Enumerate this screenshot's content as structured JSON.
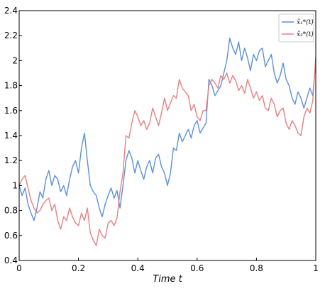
{
  "chart_data": {
    "type": "line",
    "title": "",
    "xlabel": "Time t",
    "ylabel": "",
    "xlim": [
      0,
      1
    ],
    "ylim": [
      0.4,
      2.4
    ],
    "xticks": [
      0,
      0.2,
      0.4,
      0.6,
      0.8,
      1
    ],
    "xtick_labels": [
      "0",
      "0.2",
      "0.4",
      "0.6",
      "0.8",
      "1"
    ],
    "yticks": [
      0.4,
      0.6,
      0.8,
      1,
      1.2,
      1.4,
      1.6,
      1.8,
      2,
      2.2,
      2.4
    ],
    "ytick_labels": [
      "0.4",
      "0.6",
      "0.8",
      "1",
      "1.2",
      "1.4",
      "1.6",
      "1.8",
      "2",
      "2.2",
      "2.4"
    ],
    "grid": false,
    "legend_position": "top-right",
    "series": [
      {
        "name": "x̂₁*(t)",
        "color": "#5b8fde",
        "x": [
          0,
          0.01,
          0.02,
          0.03,
          0.04,
          0.05,
          0.06,
          0.07,
          0.08,
          0.09,
          0.1,
          0.11,
          0.12,
          0.13,
          0.14,
          0.15,
          0.16,
          0.17,
          0.18,
          0.19,
          0.2,
          0.21,
          0.22,
          0.23,
          0.24,
          0.25,
          0.26,
          0.27,
          0.28,
          0.29,
          0.3,
          0.31,
          0.32,
          0.33,
          0.34,
          0.35,
          0.36,
          0.37,
          0.38,
          0.39,
          0.4,
          0.41,
          0.42,
          0.43,
          0.44,
          0.45,
          0.46,
          0.47,
          0.48,
          0.49,
          0.5,
          0.51,
          0.52,
          0.53,
          0.54,
          0.55,
          0.56,
          0.57,
          0.58,
          0.59,
          0.6,
          0.61,
          0.62,
          0.63,
          0.64,
          0.65,
          0.66,
          0.67,
          0.68,
          0.69,
          0.7,
          0.71,
          0.72,
          0.73,
          0.74,
          0.75,
          0.76,
          0.77,
          0.78,
          0.79,
          0.8,
          0.81,
          0.82,
          0.83,
          0.84,
          0.85,
          0.86,
          0.87,
          0.88,
          0.89,
          0.9,
          0.91,
          0.92,
          0.93,
          0.94,
          0.95,
          0.96,
          0.97,
          0.98,
          0.99,
          1
        ],
        "y": [
          1.0,
          0.92,
          0.98,
          0.85,
          0.78,
          0.72,
          0.82,
          0.95,
          0.9,
          1.05,
          1.12,
          1.0,
          1.08,
          1.05,
          0.95,
          1.0,
          0.92,
          1.05,
          1.15,
          1.2,
          1.1,
          1.3,
          1.42,
          1.2,
          1.0,
          0.95,
          0.92,
          0.82,
          0.75,
          0.85,
          0.92,
          0.98,
          0.9,
          0.96,
          0.82,
          1.0,
          1.2,
          1.28,
          1.22,
          1.1,
          1.2,
          1.12,
          1.05,
          1.15,
          1.2,
          1.1,
          1.22,
          1.25,
          1.15,
          1.1,
          1.0,
          1.1,
          1.3,
          1.28,
          1.42,
          1.35,
          1.4,
          1.45,
          1.38,
          1.48,
          1.52,
          1.42,
          1.46,
          1.5,
          1.85,
          1.8,
          1.72,
          1.76,
          1.8,
          1.9,
          2.0,
          2.18,
          2.1,
          2.05,
          2.15,
          2.0,
          2.1,
          2.02,
          1.92,
          2.05,
          2.0,
          2.08,
          2.1,
          1.95,
          2.0,
          2.05,
          1.9,
          1.82,
          1.88,
          1.98,
          1.85,
          1.8,
          1.7,
          1.65,
          1.75,
          1.7,
          1.62,
          1.7,
          1.78,
          1.72,
          2.0
        ]
      },
      {
        "name": "x̂₂*(t)",
        "color": "#ea7f7f",
        "x": [
          0,
          0.01,
          0.02,
          0.03,
          0.04,
          0.05,
          0.06,
          0.07,
          0.08,
          0.09,
          0.1,
          0.11,
          0.12,
          0.13,
          0.14,
          0.15,
          0.16,
          0.17,
          0.18,
          0.19,
          0.2,
          0.21,
          0.22,
          0.23,
          0.24,
          0.25,
          0.26,
          0.27,
          0.28,
          0.29,
          0.3,
          0.31,
          0.32,
          0.33,
          0.34,
          0.35,
          0.36,
          0.37,
          0.38,
          0.39,
          0.4,
          0.41,
          0.42,
          0.43,
          0.44,
          0.45,
          0.46,
          0.47,
          0.48,
          0.49,
          0.5,
          0.51,
          0.52,
          0.53,
          0.54,
          0.55,
          0.56,
          0.57,
          0.58,
          0.59,
          0.6,
          0.61,
          0.62,
          0.63,
          0.64,
          0.65,
          0.66,
          0.67,
          0.68,
          0.69,
          0.7,
          0.71,
          0.72,
          0.73,
          0.74,
          0.75,
          0.76,
          0.77,
          0.78,
          0.79,
          0.8,
          0.81,
          0.82,
          0.83,
          0.84,
          0.85,
          0.86,
          0.87,
          0.88,
          0.89,
          0.9,
          0.91,
          0.92,
          0.93,
          0.94,
          0.95,
          0.96,
          0.97,
          0.98,
          0.99,
          1
        ],
        "y": [
          1.0,
          1.05,
          1.08,
          0.98,
          0.88,
          0.82,
          0.78,
          0.8,
          0.85,
          0.88,
          0.9,
          0.8,
          0.85,
          0.72,
          0.65,
          0.75,
          0.72,
          0.82,
          0.75,
          0.7,
          0.68,
          0.78,
          0.72,
          0.82,
          0.62,
          0.56,
          0.52,
          0.65,
          0.6,
          0.58,
          0.7,
          0.72,
          0.68,
          0.74,
          0.95,
          1.1,
          1.4,
          1.38,
          1.5,
          1.6,
          1.55,
          1.48,
          1.52,
          1.45,
          1.5,
          1.62,
          1.55,
          1.48,
          1.58,
          1.7,
          1.6,
          1.66,
          1.72,
          1.7,
          1.85,
          1.78,
          1.75,
          1.72,
          1.6,
          1.65,
          1.55,
          1.52,
          1.6,
          1.6,
          1.8,
          1.85,
          1.82,
          1.78,
          1.88,
          1.85,
          1.9,
          1.82,
          1.88,
          1.84,
          1.76,
          1.8,
          1.74,
          1.85,
          1.78,
          1.7,
          1.75,
          1.68,
          1.72,
          1.62,
          1.6,
          1.7,
          1.65,
          1.55,
          1.6,
          1.62,
          1.5,
          1.45,
          1.52,
          1.48,
          1.42,
          1.4,
          1.55,
          1.62,
          1.58,
          1.68,
          2.03
        ]
      }
    ]
  }
}
